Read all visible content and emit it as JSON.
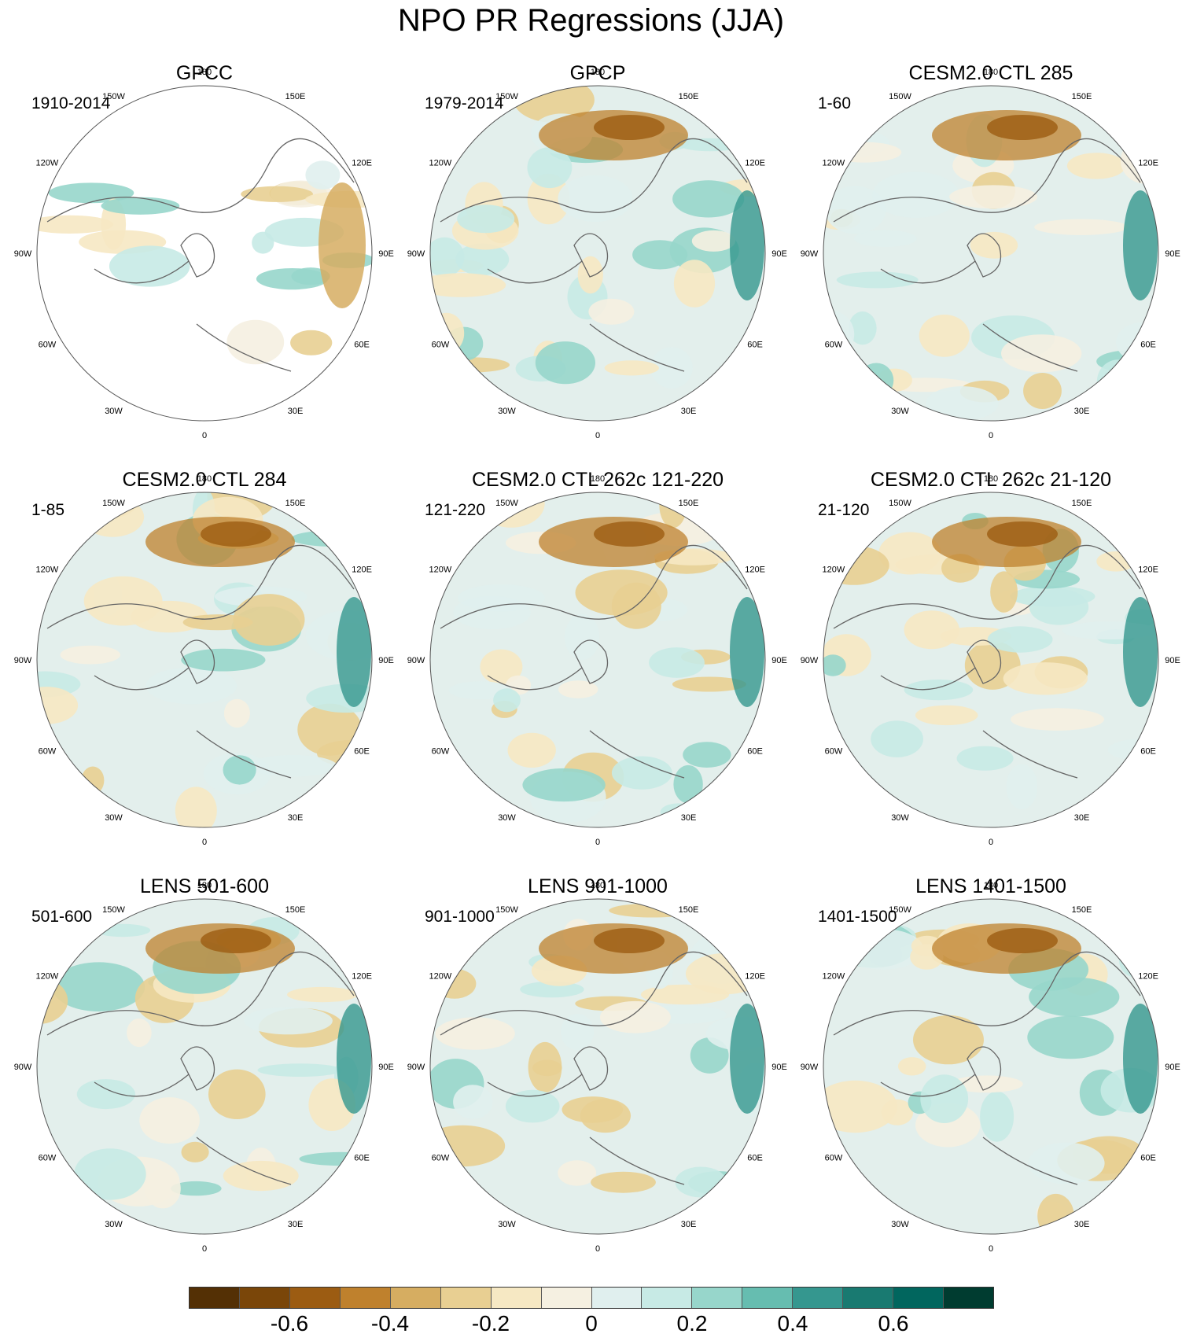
{
  "title": "NPO PR Regressions (JJA)",
  "lon_labels": [
    "180",
    "150E",
    "120E",
    "90E",
    "60E",
    "30E",
    "0",
    "30W",
    "60W",
    "90W",
    "120W",
    "150W"
  ],
  "panels": [
    {
      "title": "GPCC",
      "period": "1910-2014",
      "land_only": true
    },
    {
      "title": "GPCP",
      "period": "1979-2014"
    },
    {
      "title": "CESM2.0 CTL 285",
      "period": "1-60"
    },
    {
      "title": "CESM2.0 CTL 284",
      "period": "1-85"
    },
    {
      "title": "CESM2.0 CTL 262c 121-220",
      "period": "121-220"
    },
    {
      "title": "CESM2.0 CTL 262c 21-120",
      "period": "21-120"
    },
    {
      "title": "LENS 501-600",
      "period": "501-600"
    },
    {
      "title": "LENS 901-1000",
      "period": "901-1000"
    },
    {
      "title": "LENS 1401-1500",
      "period": "1401-1500"
    }
  ],
  "colorbar": {
    "colors": [
      "#543005",
      "#7a4609",
      "#9c5c12",
      "#bf812d",
      "#d6ad61",
      "#e8cf92",
      "#f6e8c3",
      "#f5f0e1",
      "#e0efee",
      "#c7eae5",
      "#97d6cb",
      "#66bdb0",
      "#35978f",
      "#197a71",
      "#01665e",
      "#003c30"
    ],
    "tick_labels": [
      "-0.6",
      "-0.4",
      "-0.2",
      "0",
      "0.2",
      "0.4",
      "0.6"
    ],
    "tick_values": [
      -0.6,
      -0.4,
      -0.2,
      0,
      0.2,
      0.4,
      0.6
    ],
    "range": [
      -0.8,
      0.8
    ]
  }
}
